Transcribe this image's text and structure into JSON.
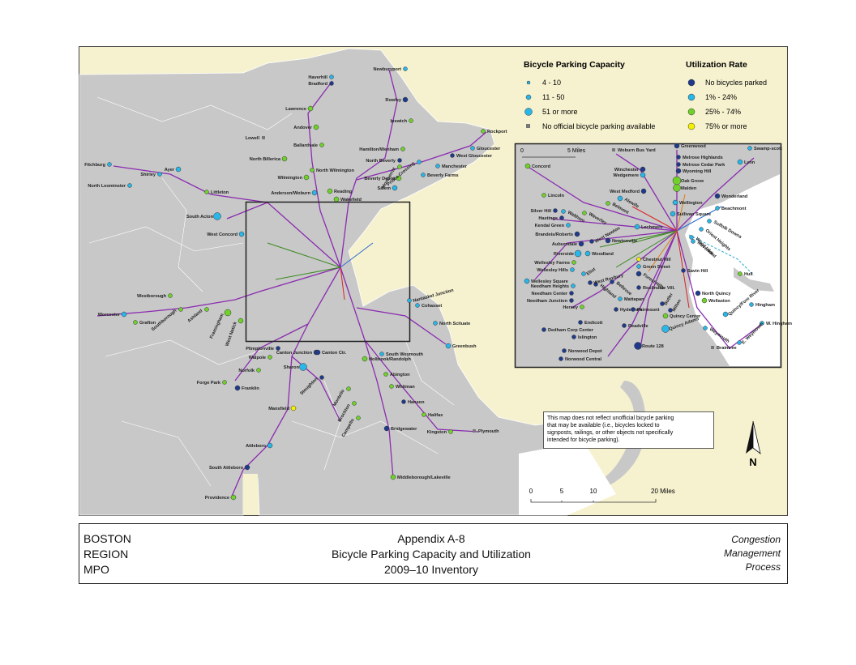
{
  "legend": {
    "capacity_title": "Bicycle Parking Capacity",
    "capacity_items": [
      "4 - 10",
      "11 - 50",
      "51 or more",
      "No official bicycle parking available"
    ],
    "utilization_title": "Utilization Rate",
    "utilization_items": [
      "No bicycles parked",
      "1% - 24%",
      "25% - 74%",
      "75% or more"
    ]
  },
  "map": {
    "stations": [
      "Haverhill",
      "Bradford",
      "Newburyport",
      "Rowley",
      "Lawrence",
      "Ipswich",
      "Andover",
      "Rockport",
      "Lowell",
      "Ballardvale",
      "Hamilton/Wenham",
      "Gloucester",
      "North Billerica",
      "North Beverly",
      "West Gloucester",
      "Manchester",
      "North Wilmington",
      "Fitchburg",
      "Beverly Depot",
      "Beverly Farms",
      "Wilmington",
      "Shirley",
      "Ayer",
      "North Leominster",
      "Salem",
      "Reading",
      "Littleton",
      "Anderson/Woburn",
      "Wakefield",
      "South Acton",
      "West Concord",
      "Westborough",
      "Worcester",
      "Grafton",
      "Nantasket Junction",
      "Cohasset",
      "North Scituate",
      "Greenbush",
      "Plimptonville",
      "Walpole",
      "Canton Junction",
      "Canton Ctr.",
      "Holbrook/Randolph",
      "South Weymouth",
      "Sharon",
      "Norfolk",
      "Abington",
      "Forge Park",
      "Franklin",
      "Whitman",
      "Hanson",
      "Mansfield",
      "Halifax",
      "Bridgewater",
      "Kingston",
      "Plymouth",
      "Attleboro",
      "South Attleboro",
      "Middleborough/Lakeville",
      "Providence",
      "Southborough",
      "Ashland",
      "Framingham",
      "West Natick",
      "Stoughton",
      "Montello",
      "Brockton",
      "Campello",
      "Montserrat",
      "Prides Crossing"
    ]
  },
  "inset": {
    "scale_labels": [
      "0",
      "5 Miles"
    ],
    "stations": [
      "Woburn Bus Yard",
      "Greenwood",
      "Swamp-scott",
      "Concord",
      "Melrose Highlands",
      "Melrose Cedar Park",
      "Wyoming Hill",
      "Lynn",
      "Winchester",
      "Wedgemere",
      "Oak Grove",
      "Malden",
      "Lincoln",
      "Alewife",
      "West Medford",
      "Wellington",
      "Wonderland",
      "Belmont",
      "Silver Hill",
      "Hastings",
      "Kendal Green",
      "Waltham",
      "Waverley",
      "Sullivan Square",
      "Beachmont",
      "Suffolk Downs",
      "Orient Heights",
      "Wood Island",
      "Brandeis/Roberts",
      "Lechmere",
      "Maverick",
      "West Newton",
      "Auburndale",
      "Newtonville",
      "Riverside",
      "Woodland",
      "Chestnut Hill",
      "Wellesley Farms",
      "Wellesley Hills",
      "Eliot",
      "Green Street",
      "Forest Hills",
      "Savin Hill",
      "Wellesley Square",
      "Highland",
      "Bellevue",
      "Needham Heights",
      "Needham Center",
      "Needham Junction",
      "Hersey",
      "West Roxbury",
      "Roslindale Vill.",
      "North Quincy",
      "Mattapan",
      "Wollaston",
      "Quincy/Fore River",
      "Hingham",
      "Butler",
      "Milton",
      "Hyde Park",
      "Fairmount",
      "Quincy Center",
      "Readville",
      "Endicott",
      "Dedham Corp Center",
      "Islington",
      "Quincy Adams",
      "W. Hingham",
      "Hull",
      "Weymouth",
      "E. Weymouth",
      "Braintree",
      "Route 128",
      "Norwood Depot",
      "Norwood Central"
    ]
  },
  "scale_bar": {
    "labels": [
      "0",
      "5",
      "10",
      "20 Miles"
    ]
  },
  "note": [
    "This map does not reflect unofficial bicycle parking",
    "that may be available (i.e., bicycles locked to",
    "signposts, railings, or other objects not specifically",
    "intended for bicycle parking)."
  ],
  "north": "N",
  "footer": {
    "left": [
      "BOSTON",
      "REGION",
      "MPO"
    ],
    "center": [
      "Appendix A-8",
      "Bicycle Parking Capacity and Utilization",
      "2009–10 Inventory"
    ],
    "right": [
      "Congestion",
      "Management",
      "Process"
    ]
  }
}
